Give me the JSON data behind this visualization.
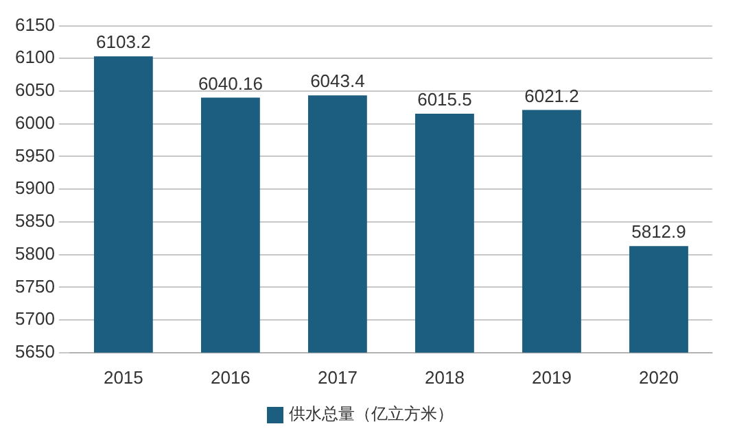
{
  "chart_data": {
    "type": "bar",
    "categories": [
      "2015",
      "2016",
      "2017",
      "2018",
      "2019",
      "2020"
    ],
    "series": [
      {
        "name": "供水总量（亿立方米）",
        "color": "#1b5e80",
        "values": [
          6103.2,
          6040.16,
          6043.4,
          6015.5,
          6021.2,
          5812.9
        ]
      }
    ],
    "ylim": [
      5650,
      6150
    ],
    "yticks": [
      5650,
      5700,
      5750,
      5800,
      5850,
      5900,
      5950,
      6000,
      6050,
      6100,
      6150
    ],
    "grid": "y",
    "legend": "bottom",
    "data_labels": true
  }
}
